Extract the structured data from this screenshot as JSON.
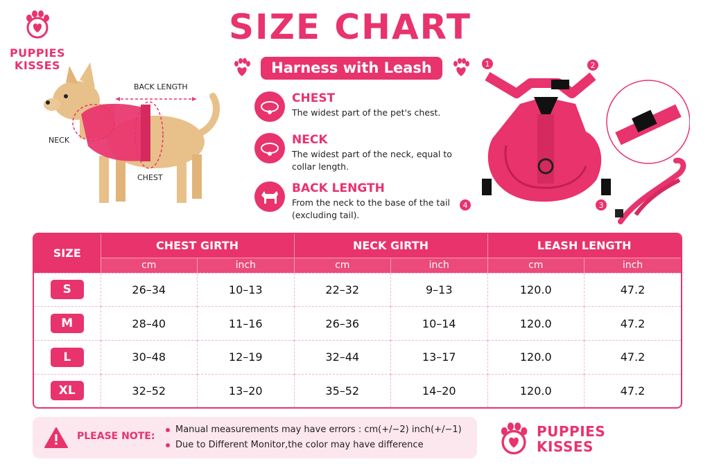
{
  "brand": {
    "line1": "PUPPIES",
    "line2": "KISSES"
  },
  "title": "SIZE CHART",
  "subtitle": "Harness with Leash",
  "dog_labels": {
    "back": "BACK LENGTH",
    "neck": "NECK",
    "chest": "CHEST"
  },
  "measurements": [
    {
      "title": "CHEST",
      "desc": "The widest part of the pet's chest.",
      "icon": "collar-icon"
    },
    {
      "title": "NECK",
      "desc": "The widest part of the neck, equal to collar length.",
      "icon": "collar-icon"
    },
    {
      "title": "BACK LENGTH",
      "desc": "From the neck to the base of the tail (excluding tail).",
      "icon": "dog-silhouette-icon"
    }
  ],
  "harness_markers": [
    "1",
    "2",
    "3",
    "4"
  ],
  "table": {
    "size_header": "SIZE",
    "groups": [
      "CHEST GIRTH",
      "NECK GIRTH",
      "LEASH LENGTH"
    ],
    "units": [
      "cm",
      "inch",
      "cm",
      "inch",
      "cm",
      "inch"
    ],
    "rows": [
      {
        "size": "S",
        "cells": [
          "26–34",
          "10–13",
          "22–32",
          "9–13",
          "120.0",
          "47.2"
        ]
      },
      {
        "size": "M",
        "cells": [
          "28–40",
          "11–16",
          "26–36",
          "10–14",
          "120.0",
          "47.2"
        ]
      },
      {
        "size": "L",
        "cells": [
          "30–48",
          "12–19",
          "32–44",
          "13–17",
          "120.0",
          "47.2"
        ]
      },
      {
        "size": "XL",
        "cells": [
          "32–52",
          "13–20",
          "35–52",
          "14–20",
          "120.0",
          "47.2"
        ]
      }
    ]
  },
  "note": {
    "label": "PLEASE NOTE:",
    "lines": [
      "Manual measurements may have errors : cm(+/−2)   inch(+/−1)",
      "Due to Different Monitor,the color may have difference"
    ]
  },
  "colors": {
    "accent": "#e8336d",
    "note_bg": "#fde7ee"
  }
}
